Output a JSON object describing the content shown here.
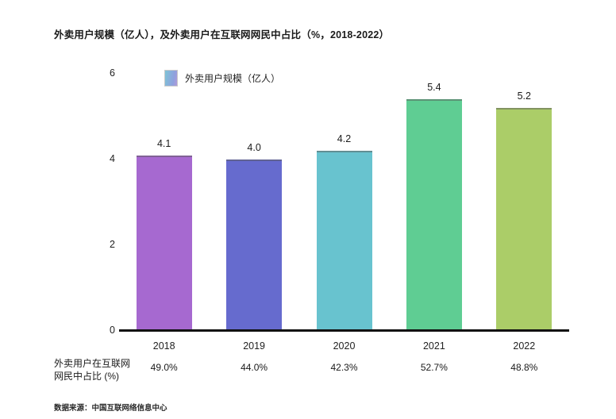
{
  "title": "外卖用户规模（亿人），及外卖用户在互联网网民中占比（%，2018-2022）",
  "legend": {
    "label": "外卖用户规模（亿人）",
    "swatch_icon": "gradient-square-icon",
    "swatch_gradient": [
      "#7ec4d6",
      "#8fa0de",
      "#b29ad8"
    ]
  },
  "chart_data": {
    "type": "bar",
    "categories": [
      "2018",
      "2019",
      "2020",
      "2021",
      "2022"
    ],
    "series": [
      {
        "name": "外卖用户规模（亿人）",
        "values": [
          4.1,
          4.0,
          4.2,
          5.4,
          5.2
        ],
        "value_labels": [
          "4.1",
          "4.0",
          "4.2",
          "5.4",
          "5.2"
        ]
      },
      {
        "name": "外卖用户在互联网网民中占比 (%)",
        "value_labels": [
          "49.0%",
          "44.0%",
          "42.3%",
          "52.7%",
          "48.8%"
        ]
      }
    ],
    "bar_colors": [
      "#A669D0",
      "#666BCE",
      "#68C3CF",
      "#5FCD93",
      "#ABCD68"
    ],
    "yticks": [
      0,
      2,
      4,
      6
    ],
    "ylim": [
      0,
      6
    ],
    "grid": false,
    "legend_position": "top-left-inside",
    "xlabel": "",
    "ylabel": ""
  },
  "percent_row": {
    "label_line1": "外卖用户在互联网",
    "label_line2": "网民中占比 (%)"
  },
  "source": "数据来源：中国互联网络信息中心"
}
